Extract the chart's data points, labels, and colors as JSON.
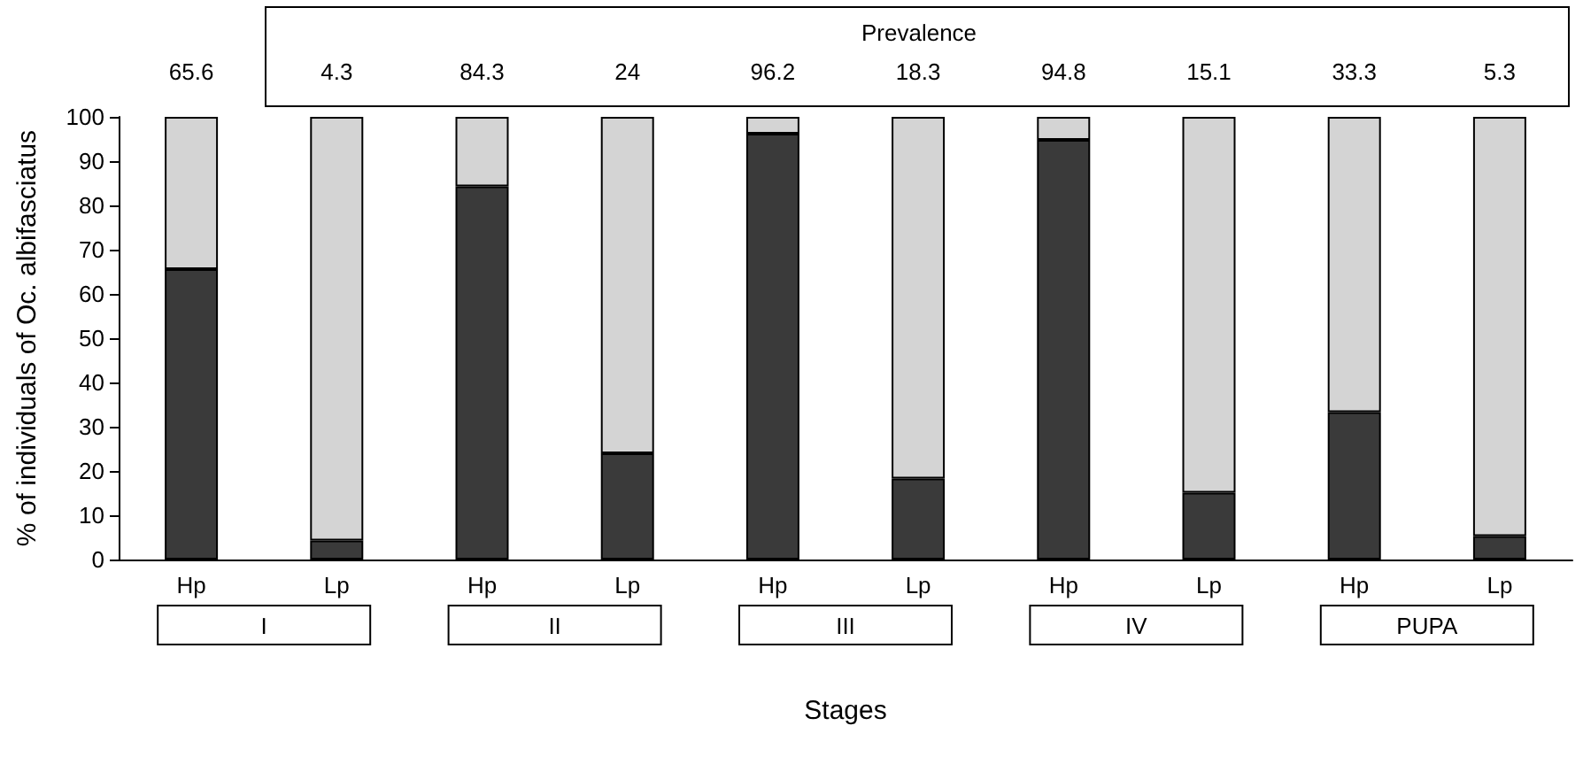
{
  "chart_data": {
    "type": "bar",
    "stacked": true,
    "subtitle": "Prevalence",
    "xlabel": "Stages",
    "ylabel": "% of individuals of Oc. albifasciatus",
    "categories": [
      "Hp",
      "Lp",
      "Hp",
      "Lp",
      "Hp",
      "Lp",
      "Hp",
      "Lp",
      "Hp",
      "Lp"
    ],
    "series": [
      {
        "color": "#3a3a3a",
        "values": [
          65.6,
          4.3,
          84.3,
          24,
          96.2,
          18.3,
          94.8,
          15.1,
          33.3,
          5.3
        ],
        "value_labels": [
          "65.6",
          "4.3",
          "84.3",
          "24",
          "96.2",
          "18.3",
          "94.8",
          "15.1",
          "33.3",
          "5.3"
        ]
      },
      {
        "color": "#d4d4d4",
        "values": [
          34.4,
          95.7,
          15.7,
          76,
          3.8,
          81.7,
          5.2,
          84.9,
          66.7,
          94.7
        ]
      }
    ],
    "annotations": [
      "I",
      "II",
      "III",
      "IV",
      "PUPA"
    ],
    "ylim": [
      0,
      100
    ],
    "yticks": [
      0,
      10,
      20,
      30,
      40,
      50,
      60,
      70,
      80,
      90,
      100
    ],
    "grid": false
  }
}
